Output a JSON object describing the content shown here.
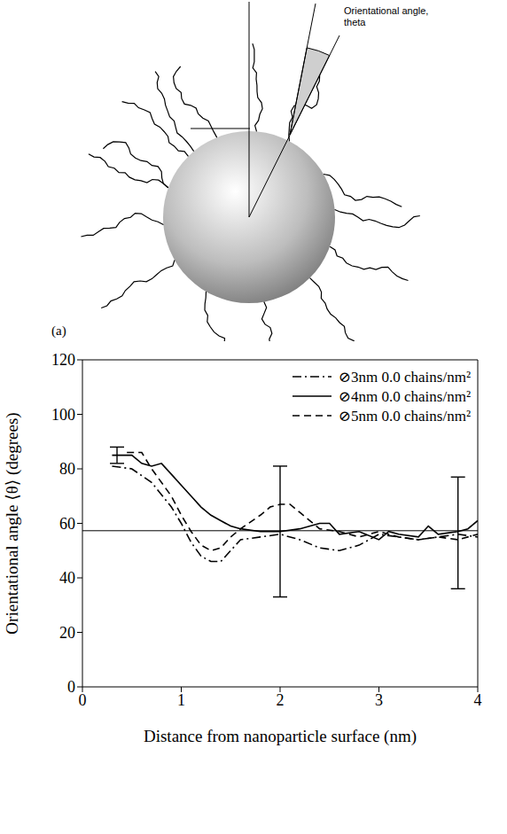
{
  "diagram": {
    "panel_label": "(a)",
    "annotation": "Orientational angle, theta"
  },
  "chart_data": {
    "type": "line",
    "x_label": "Distance from nanoparticle surface (nm)",
    "y_label": "Orientational angle ⟨θ⟩ (degrees)",
    "xlim": [
      0,
      4
    ],
    "xticks": [
      0,
      1,
      2,
      3,
      4
    ],
    "ylim": [
      0,
      120
    ],
    "yticks": [
      0,
      20,
      40,
      60,
      80,
      100,
      120
    ],
    "legend": "upper right",
    "reference_line": 57.3,
    "error_bars": [
      {
        "x": 0.35,
        "y": 85,
        "error": 3
      },
      {
        "x": 2,
        "y": 57,
        "error": 24
      },
      {
        "x": 3.8,
        "y": 56.5,
        "error": 20.5
      }
    ],
    "series": [
      {
        "name": "⊘3nm 0.0 chains/nm²",
        "color": "#000000",
        "line_style": "dashdot",
        "x": [
          0.3,
          0.5,
          0.7,
          0.9,
          1.0,
          1.1,
          1.2,
          1.3,
          1.4,
          1.5,
          1.6,
          1.8,
          2.0,
          2.2,
          2.4,
          2.6,
          2.8,
          3.0,
          3.2,
          3.4,
          3.6,
          3.8,
          4.0
        ],
        "values": [
          81,
          80,
          75,
          66,
          60,
          53,
          48,
          46,
          46,
          50,
          54,
          55,
          56,
          54,
          51,
          50,
          52,
          56,
          55,
          54,
          55,
          56,
          55
        ]
      },
      {
        "name": "⊘4nm 0.0 chains/nm²",
        "color": "#000000",
        "line_style": "solid",
        "x": [
          0.3,
          0.5,
          0.6,
          0.7,
          0.8,
          0.9,
          1.0,
          1.1,
          1.2,
          1.3,
          1.4,
          1.5,
          1.6,
          1.8,
          2.0,
          2.2,
          2.4,
          2.5,
          2.6,
          2.8,
          3.0,
          3.1,
          3.2,
          3.4,
          3.5,
          3.6,
          3.8,
          3.9,
          4.0
        ],
        "values": [
          85,
          85,
          82,
          81,
          82,
          78,
          74,
          70,
          66,
          63,
          61,
          59,
          58,
          57,
          57,
          58,
          60,
          60,
          56,
          57,
          54,
          57,
          56,
          55,
          59,
          56,
          57,
          58,
          61
        ]
      },
      {
        "name": "⊘5nm 0.0 chains/nm²",
        "color": "#000000",
        "line_style": "dashed",
        "x": [
          0.45,
          0.6,
          0.7,
          0.9,
          1.0,
          1.1,
          1.2,
          1.3,
          1.4,
          1.5,
          1.6,
          1.8,
          1.9,
          2.0,
          2.1,
          2.2,
          2.4,
          2.6,
          2.8,
          3.0,
          3.2,
          3.4,
          3.6,
          3.8,
          4.0
        ],
        "values": [
          86,
          86,
          80,
          70,
          63,
          57,
          52,
          50,
          51,
          55,
          58,
          63,
          66,
          67,
          67,
          64,
          58,
          57,
          55,
          57,
          55,
          54,
          55,
          54,
          56
        ]
      }
    ]
  }
}
